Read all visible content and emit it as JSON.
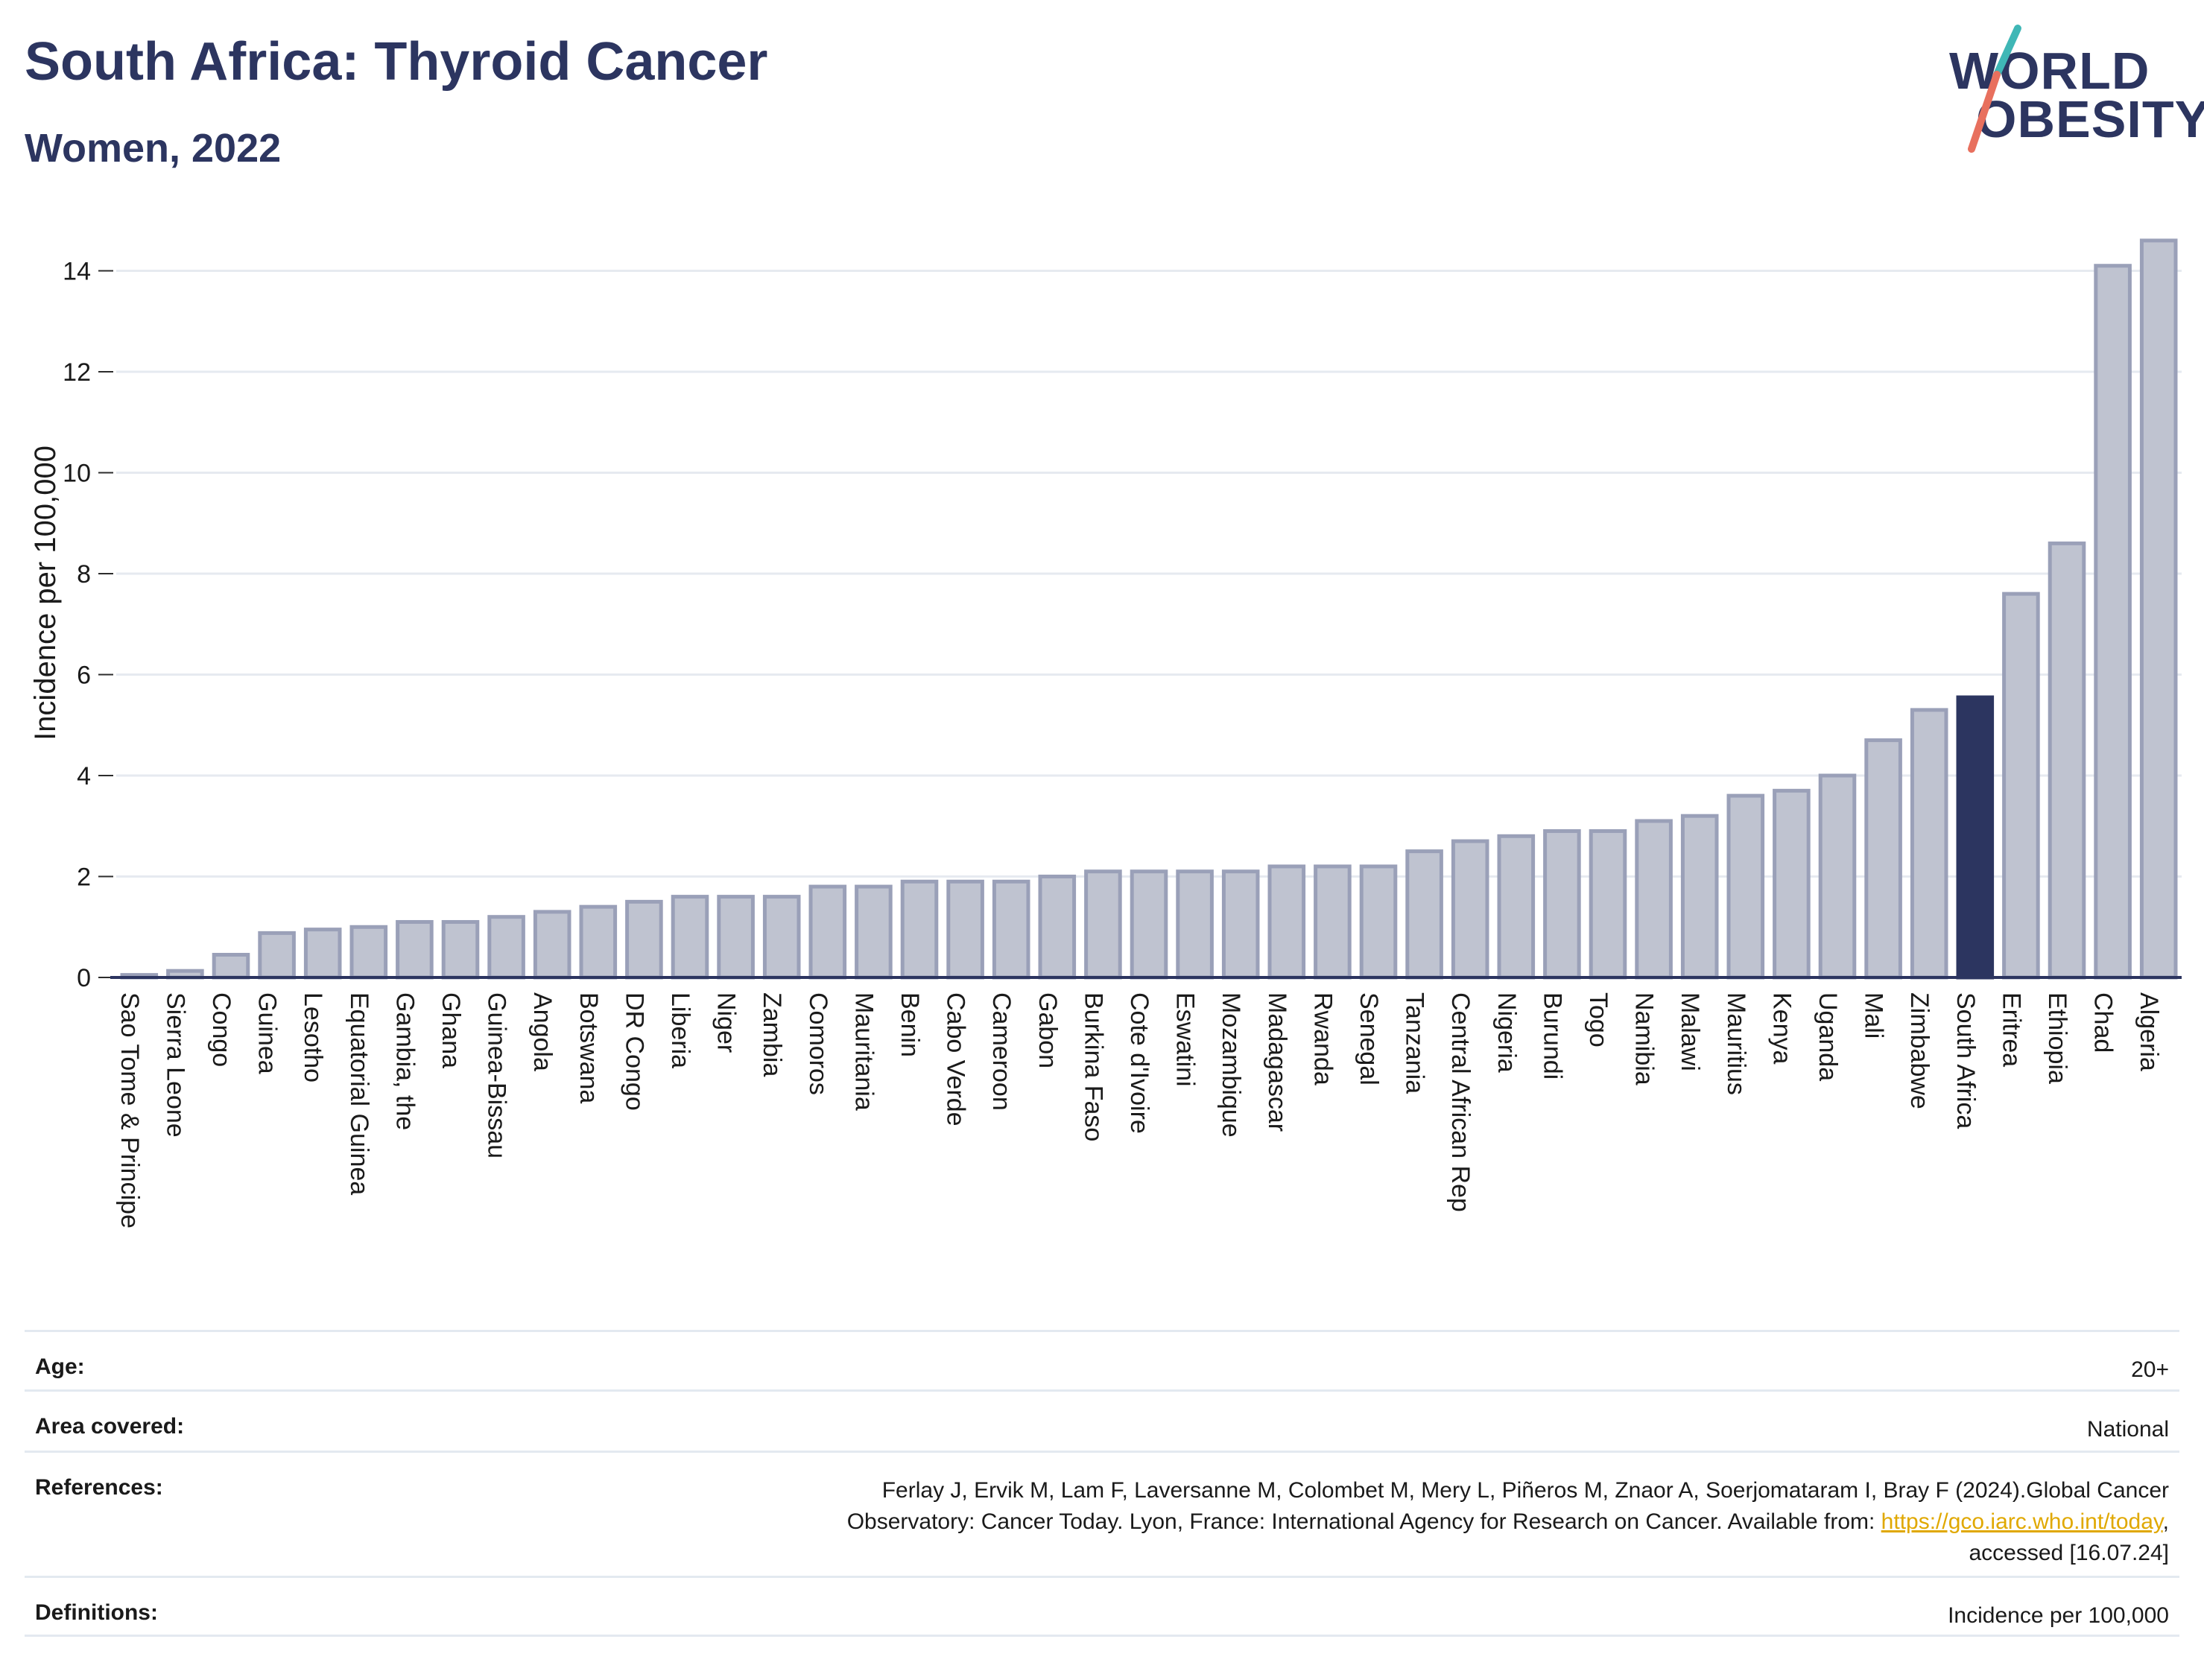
{
  "header": {
    "title": "South Africa: Thyroid Cancer",
    "subtitle": "Women, 2022"
  },
  "logo": {
    "line1": "WORLD",
    "line2": "OBESITY",
    "colors": {
      "text": "#2c3560",
      "slash_teal": "#3fb7b6",
      "slash_coral": "#e8705e"
    }
  },
  "chart_data": {
    "type": "bar",
    "title": "South Africa: Thyroid Cancer",
    "subtitle": "Women, 2022",
    "xlabel": "",
    "ylabel": "Incidence per 100,000",
    "ylim": [
      0,
      14.7
    ],
    "yticks": [
      0,
      2,
      4,
      6,
      8,
      10,
      12,
      14
    ],
    "grid": true,
    "highlight": "South Africa",
    "colors": {
      "bar": "#bfc3d0",
      "bar_border": "#9aa0b8",
      "highlight": "#2c3560",
      "grid": "#e6eaf0"
    },
    "categories": [
      "Sao Tome & Principe",
      "Sierra Leone",
      "Congo",
      "Guinea",
      "Lesotho",
      "Equatorial Guinea",
      "Gambia, the",
      "Ghana",
      "Guinea-Bissau",
      "Angola",
      "Botswana",
      "DR Congo",
      "Liberia",
      "Niger",
      "Zambia",
      "Comoros",
      "Mauritania",
      "Benin",
      "Cabo Verde",
      "Cameroon",
      "Gabon",
      "Burkina Faso",
      "Cote d'Ivoire",
      "Eswatini",
      "Mozambique",
      "Madagascar",
      "Rwanda",
      "Senegal",
      "Tanzania",
      "Central African Rep",
      "Nigeria",
      "Burundi",
      "Togo",
      "Namibia",
      "Malawi",
      "Mauritius",
      "Kenya",
      "Uganda",
      "Mali",
      "Zimbabwe",
      "South Africa",
      "Eritrea",
      "Ethiopia",
      "Chad",
      "Algeria"
    ],
    "values": [
      0.05,
      0.13,
      0.45,
      0.88,
      0.95,
      1.0,
      1.1,
      1.1,
      1.2,
      1.3,
      1.4,
      1.5,
      1.6,
      1.6,
      1.6,
      1.8,
      1.8,
      1.9,
      1.9,
      1.9,
      2.0,
      2.1,
      2.1,
      2.1,
      2.1,
      2.2,
      2.2,
      2.2,
      2.5,
      2.7,
      2.8,
      2.9,
      2.9,
      3.1,
      3.2,
      3.6,
      3.7,
      4.0,
      4.7,
      5.3,
      5.55,
      7.6,
      8.6,
      14.1,
      14.6
    ]
  },
  "meta": {
    "age": {
      "label": "Age:",
      "value": "20+"
    },
    "area": {
      "label": "Area covered:",
      "value": "National"
    },
    "references": {
      "label": "References:",
      "text1": "Ferlay J, Ervik M, Lam F, Laversanne M, Colombet M, Mery L, Piñeros M, Znaor A, Soerjomataram I, Bray F (2024).Global Cancer",
      "text2": "Observatory: Cancer Today. Lyon, France: International Agency for Research on Cancer. Available from: ",
      "link": "https://gco.iarc.who.int/today",
      "text3": ",",
      "text4": "accessed [16.07.24]"
    },
    "definitions": {
      "label": "Definitions:",
      "value": "Incidence per 100,000"
    }
  }
}
